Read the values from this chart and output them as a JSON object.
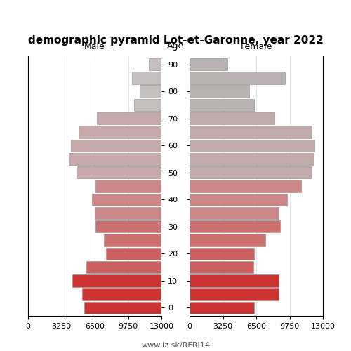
{
  "title": "demographic pyramid Lot-et-Garonne, year 2022",
  "ages": [
    90,
    85,
    80,
    75,
    70,
    65,
    60,
    55,
    50,
    45,
    40,
    35,
    30,
    25,
    20,
    15,
    10,
    5,
    0
  ],
  "male": [
    1200,
    2900,
    2100,
    2700,
    6300,
    8100,
    8800,
    9000,
    8300,
    6400,
    6800,
    6500,
    6400,
    5600,
    5400,
    7300,
    8700,
    7700,
    7500
  ],
  "female": [
    3700,
    9300,
    5800,
    6300,
    8300,
    11900,
    12200,
    12100,
    11900,
    10900,
    9500,
    8700,
    8800,
    7400,
    6300,
    6200,
    8700,
    8700,
    6300
  ],
  "male_colors_by_age": {
    "90": "#c5bfbf",
    "85": "#c5bfbf",
    "80": "#c5bfbf",
    "75": "#c5bfbf",
    "70": "#c8aaaa",
    "65": "#c8aaaa",
    "60": "#c8aaaa",
    "55": "#c8aaaa",
    "50": "#c8aaaa",
    "45": "#cc8888",
    "40": "#cc8888",
    "35": "#cc8888",
    "30": "#cc7070",
    "25": "#cc7070",
    "20": "#cc6060",
    "15": "#cc6060",
    "10": "#cc3333",
    "5": "#cc3333",
    "0": "#cc3333"
  },
  "female_colors_by_age": {
    "90": "#b8b2b2",
    "85": "#b8b2b2",
    "80": "#b8b2b2",
    "75": "#b8b2b2",
    "70": "#c0aaaa",
    "65": "#c0aaaa",
    "60": "#c0aaaa",
    "55": "#c0aaaa",
    "50": "#c0aaaa",
    "45": "#cc8888",
    "40": "#cc8888",
    "35": "#cc8888",
    "30": "#cc7070",
    "25": "#cc7070",
    "20": "#cc6060",
    "15": "#cc6060",
    "10": "#cc3333",
    "5": "#cc3333",
    "0": "#cc3333"
  },
  "age_ticks": [
    0,
    10,
    20,
    30,
    40,
    50,
    60,
    70,
    80,
    90
  ],
  "xlim": 13000,
  "xticks": [
    0,
    3250,
    6500,
    9750,
    13000
  ],
  "bar_height": 4.5,
  "title_fontsize": 11,
  "header_fontsize": 9,
  "tick_fontsize": 8,
  "footer": "www.iz.sk/RFRI14",
  "male_header": "Male",
  "female_header": "Female",
  "age_header": "Age"
}
